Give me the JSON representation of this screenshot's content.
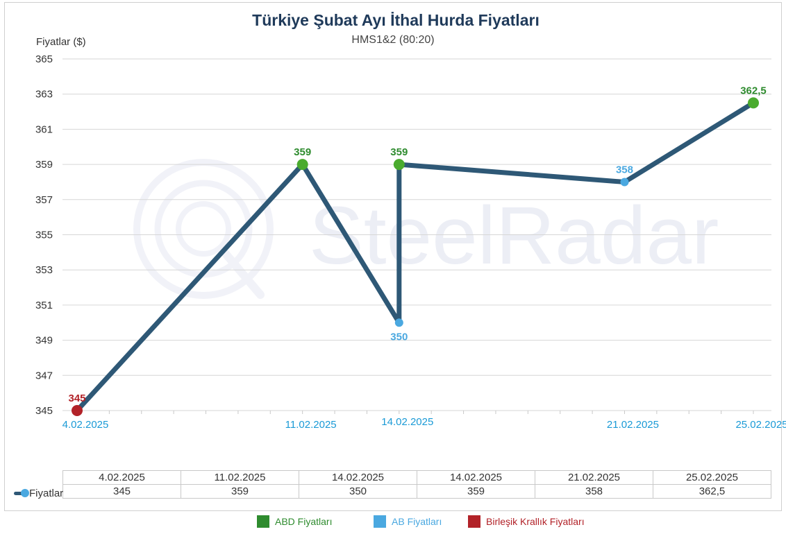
{
  "colors": {
    "line": "#2e5876",
    "abd": "#2e8b2e",
    "abd_marker": "#4aab2e",
    "ab": "#4aa8e0",
    "uk": "#b22228",
    "title": "#1f3a5a",
    "axis_date": "#1a9ad6"
  },
  "chart_data": {
    "type": "line",
    "title": "Türkiye Şubat Ayı İthal Hurda Fiyatları",
    "subtitle": "HMS1&2 (80:20)",
    "ylabel": "Fiyatlar ($)",
    "ylim": [
      345,
      365
    ],
    "yticks": [
      "365",
      "363",
      "361",
      "359",
      "357",
      "355",
      "353",
      "351",
      "349",
      "347",
      "345"
    ],
    "grid": true,
    "x_tick_labels": [
      "4.02.2025",
      "11.02.2025",
      "14.02.2025",
      "21.02.2025",
      "25.02.2025"
    ],
    "series": [
      {
        "name": "Fiyatlar",
        "points": [
          {
            "x": "4.02.2025",
            "y": 345,
            "label": "345",
            "origin": "uk"
          },
          {
            "x": "11.02.2025",
            "y": 359,
            "label": "359",
            "origin": "abd"
          },
          {
            "x": "14.02.2025",
            "y": 350,
            "label": "350",
            "origin": "ab"
          },
          {
            "x": "14.02.2025",
            "y": 359,
            "label": "359",
            "origin": "abd"
          },
          {
            "x": "21.02.2025",
            "y": 358,
            "label": "358",
            "origin": "ab"
          },
          {
            "x": "25.02.2025",
            "y": 362.5,
            "label": "362,5",
            "origin": "abd"
          }
        ]
      }
    ],
    "table": {
      "row_label": "Fiyatlar",
      "headers": [
        "4.02.2025",
        "11.02.2025",
        "14.02.2025",
        "14.02.2025",
        "21.02.2025",
        "25.02.2025"
      ],
      "values": [
        "345",
        "359",
        "350",
        "359",
        "358",
        "362,5"
      ]
    }
  },
  "watermark": "SteelRadar",
  "legend": [
    {
      "label": "ABD Fiyatları",
      "origin": "abd"
    },
    {
      "label": "AB Fiyatları",
      "origin": "ab"
    },
    {
      "label": "Birleşik Krallık Fiyatları",
      "origin": "uk"
    }
  ]
}
